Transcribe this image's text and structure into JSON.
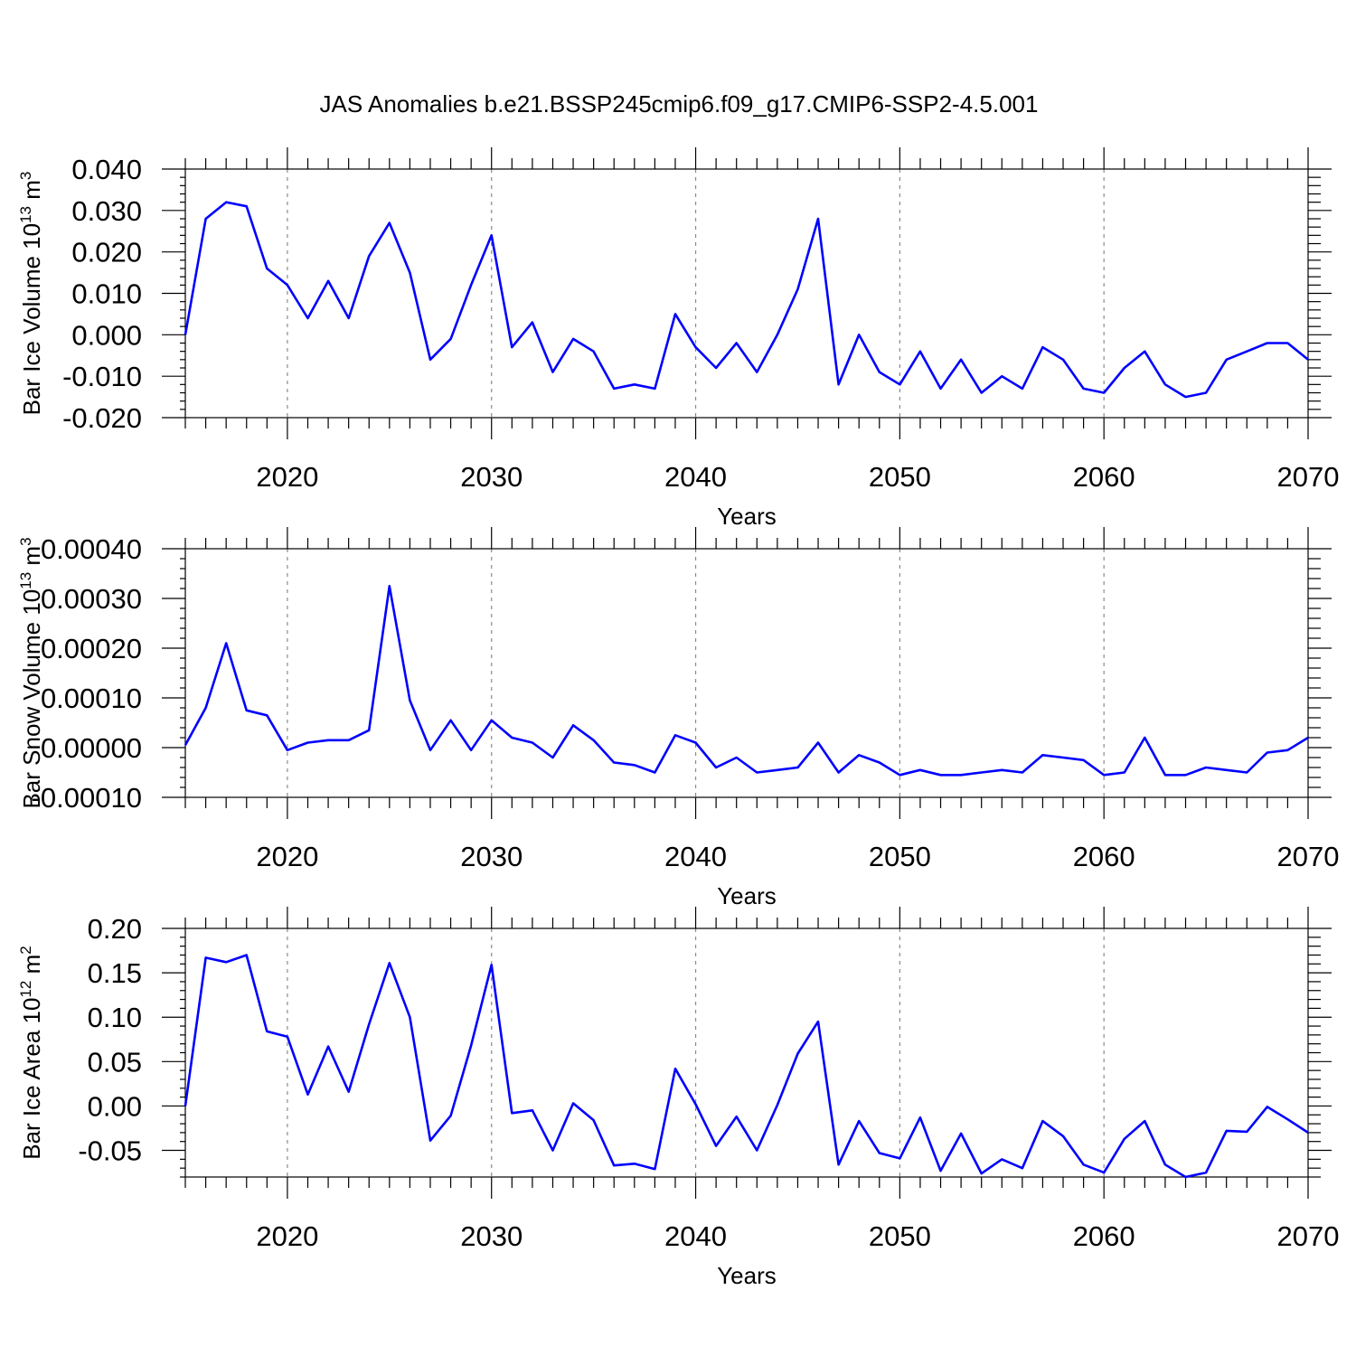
{
  "title": "JAS Anomalies b.e21.BSSP245cmip6.f09_g17.CMIP6-SSP2-4.5.001",
  "colors": {
    "series": "#0000ff",
    "grid": "#8a8a8a",
    "axis": "#000000"
  },
  "chart_data": [
    {
      "type": "line",
      "xlabel": "Years",
      "ylabel": {
        "text": "Bar Ice Volume 10",
        "sup": "13",
        "unit": " m",
        "unit_sup": "3"
      },
      "xlim": [
        2015,
        2070
      ],
      "ylim": [
        -0.02,
        0.04
      ],
      "xticks": [
        2020,
        2030,
        2040,
        2050,
        2060,
        2070
      ],
      "yticks": [
        -0.02,
        -0.01,
        0.0,
        0.01,
        0.02,
        0.03,
        0.04
      ],
      "ytick_labels": [
        "-0.020",
        "-0.010",
        "0.000",
        "0.010",
        "0.020",
        "0.030",
        "0.040"
      ],
      "grid": "vertical dashed at major x ticks",
      "x": [
        2015,
        2016,
        2017,
        2018,
        2019,
        2020,
        2021,
        2022,
        2023,
        2024,
        2025,
        2026,
        2027,
        2028,
        2029,
        2030,
        2031,
        2032,
        2033,
        2034,
        2035,
        2036,
        2037,
        2038,
        2039,
        2040,
        2041,
        2042,
        2043,
        2044,
        2045,
        2046,
        2047,
        2048,
        2049,
        2050,
        2051,
        2052,
        2053,
        2054,
        2055,
        2056,
        2057,
        2058,
        2059,
        2060,
        2061,
        2062,
        2063,
        2064,
        2065,
        2066,
        2067,
        2068,
        2069,
        2070
      ],
      "values": [
        0.0,
        0.028,
        0.032,
        0.031,
        0.016,
        0.012,
        0.004,
        0.013,
        0.004,
        0.019,
        0.027,
        0.015,
        -0.006,
        -0.001,
        0.012,
        0.024,
        -0.003,
        0.003,
        -0.009,
        -0.001,
        -0.004,
        -0.013,
        -0.012,
        -0.013,
        0.005,
        -0.003,
        -0.008,
        -0.002,
        -0.009,
        0.0,
        0.011,
        0.028,
        -0.012,
        0.0,
        -0.009,
        -0.012,
        -0.004,
        -0.013,
        -0.006,
        -0.014,
        -0.01,
        -0.013,
        -0.003,
        -0.006,
        -0.013,
        -0.014,
        -0.008,
        -0.004,
        -0.012,
        -0.015,
        -0.014,
        -0.006,
        -0.004,
        -0.002,
        -0.002,
        -0.006
      ]
    },
    {
      "type": "line",
      "xlabel": "Years",
      "ylabel": {
        "text": "Bar Snow Volume 10",
        "sup": "13",
        "unit": " m",
        "unit_sup": "3"
      },
      "xlim": [
        2015,
        2070
      ],
      "ylim": [
        -0.0001,
        0.0004
      ],
      "xticks": [
        2020,
        2030,
        2040,
        2050,
        2060,
        2070
      ],
      "yticks": [
        -0.0001,
        0.0,
        0.0001,
        0.0002,
        0.0003,
        0.0004
      ],
      "ytick_labels": [
        "-0.00010",
        "0.00000",
        "0.00010",
        "0.00020",
        "0.00030",
        "0.00040"
      ],
      "grid": "vertical dashed at major x ticks",
      "x": [
        2015,
        2016,
        2017,
        2018,
        2019,
        2020,
        2021,
        2022,
        2023,
        2024,
        2025,
        2026,
        2027,
        2028,
        2029,
        2030,
        2031,
        2032,
        2033,
        2034,
        2035,
        2036,
        2037,
        2038,
        2039,
        2040,
        2041,
        2042,
        2043,
        2044,
        2045,
        2046,
        2047,
        2048,
        2049,
        2050,
        2051,
        2052,
        2053,
        2054,
        2055,
        2056,
        2057,
        2058,
        2059,
        2060,
        2061,
        2062,
        2063,
        2064,
        2065,
        2066,
        2067,
        2068,
        2069,
        2070
      ],
      "values": [
        5e-06,
        8e-05,
        0.00021,
        7.5e-05,
        6.5e-05,
        -5e-06,
        1e-05,
        1.5e-05,
        1.5e-05,
        3.5e-05,
        0.000325,
        9.5e-05,
        -5e-06,
        5.5e-05,
        -5e-06,
        5.5e-05,
        2e-05,
        1e-05,
        -2e-05,
        4.5e-05,
        1.5e-05,
        -3e-05,
        -3.5e-05,
        -5e-05,
        2.5e-05,
        1e-05,
        -4e-05,
        -2e-05,
        -5e-05,
        -4.5e-05,
        -4e-05,
        1e-05,
        -5e-05,
        -1.5e-05,
        -3e-05,
        -5.5e-05,
        -4.5e-05,
        -5.5e-05,
        -5.5e-05,
        -5e-05,
        -4.5e-05,
        -5e-05,
        -1.5e-05,
        -2e-05,
        -2.5e-05,
        -5.5e-05,
        -5e-05,
        2e-05,
        -5.5e-05,
        -5.5e-05,
        -4e-05,
        -4.5e-05,
        -5e-05,
        -1e-05,
        -5e-06,
        2e-05
      ]
    },
    {
      "type": "line",
      "xlabel": "Years",
      "ylabel": {
        "text": "Bar Ice Area 10",
        "sup": "12",
        "unit": " m",
        "unit_sup": "2"
      },
      "xlim": [
        2015,
        2070
      ],
      "ylim": [
        -0.08,
        0.2
      ],
      "xticks": [
        2020,
        2030,
        2040,
        2050,
        2060,
        2070
      ],
      "yticks": [
        -0.05,
        0.0,
        0.05,
        0.1,
        0.15,
        0.2
      ],
      "ytick_labels": [
        "-0.05",
        "0.00",
        "0.05",
        "0.10",
        "0.15",
        "0.20"
      ],
      "grid": "vertical dashed at major x ticks",
      "x": [
        2015,
        2016,
        2017,
        2018,
        2019,
        2020,
        2021,
        2022,
        2023,
        2024,
        2025,
        2026,
        2027,
        2028,
        2029,
        2030,
        2031,
        2032,
        2033,
        2034,
        2035,
        2036,
        2037,
        2038,
        2039,
        2040,
        2041,
        2042,
        2043,
        2044,
        2045,
        2046,
        2047,
        2048,
        2049,
        2050,
        2051,
        2052,
        2053,
        2054,
        2055,
        2056,
        2057,
        2058,
        2059,
        2060,
        2061,
        2062,
        2063,
        2064,
        2065,
        2066,
        2067,
        2068,
        2069,
        2070
      ],
      "values": [
        0.0,
        0.167,
        0.162,
        0.17,
        0.084,
        0.078,
        0.013,
        0.067,
        0.016,
        0.092,
        0.161,
        0.1,
        -0.039,
        -0.011,
        0.068,
        0.159,
        -0.008,
        -0.005,
        -0.05,
        0.003,
        -0.016,
        -0.067,
        -0.065,
        -0.071,
        0.042,
        0.002,
        -0.045,
        -0.012,
        -0.05,
        0.001,
        0.059,
        0.095,
        -0.066,
        -0.017,
        -0.053,
        -0.059,
        -0.013,
        -0.073,
        -0.031,
        -0.076,
        -0.06,
        -0.07,
        -0.017,
        -0.034,
        -0.066,
        -0.075,
        -0.037,
        -0.017,
        -0.066,
        -0.08,
        -0.075,
        -0.028,
        -0.029,
        -0.001,
        -0.015,
        -0.03
      ]
    }
  ]
}
